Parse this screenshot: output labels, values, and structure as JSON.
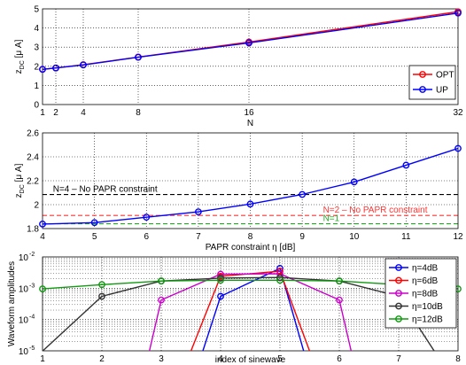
{
  "chart_data": [
    {
      "type": "line",
      "xlabel": "N",
      "ylabel_main": "z",
      "ylabel_sub": "DC",
      "ylabel_unit": " [μ A]",
      "xlim": [
        1,
        32
      ],
      "ylim": [
        0,
        5
      ],
      "xticks": [
        1,
        2,
        4,
        8,
        16,
        32
      ],
      "yticks": [
        0,
        1,
        2,
        3,
        4,
        5
      ],
      "grid": true,
      "legend_position": "bottom-right",
      "x": [
        1,
        2,
        4,
        8,
        16,
        32
      ],
      "series": [
        {
          "name": "OPT",
          "color": "#ff0000",
          "values": [
            1.84,
            1.91,
            2.08,
            2.48,
            3.27,
            4.85
          ]
        },
        {
          "name": "UP",
          "color": "#0000ff",
          "values": [
            1.84,
            1.91,
            2.07,
            2.47,
            3.22,
            4.78
          ]
        }
      ]
    },
    {
      "type": "line",
      "xlabel": "PAPR constraint η [dB]",
      "ylabel_main": "z",
      "ylabel_sub": "DC",
      "ylabel_unit": " [μ A]",
      "xlim": [
        4,
        12
      ],
      "ylim": [
        1.8,
        2.6
      ],
      "xticks": [
        4,
        5,
        6,
        7,
        8,
        9,
        10,
        11,
        12
      ],
      "yticks": [
        1.8,
        2.0,
        2.2,
        2.4,
        2.6
      ],
      "yticklabels": [
        "1.8",
        "2",
        "2.2",
        "2.4",
        "2.6"
      ],
      "grid": true,
      "x": [
        4,
        5,
        6,
        7,
        8,
        9,
        10,
        11,
        12
      ],
      "series": [
        {
          "name": "",
          "color": "#0000ff",
          "values": [
            1.838,
            1.85,
            1.895,
            1.94,
            2.005,
            2.085,
            2.19,
            2.33,
            2.47
          ]
        }
      ],
      "reference_lines": [
        {
          "y": 2.085,
          "color": "#000000",
          "label": "N=4 – No PAPR constraint",
          "label_x": 4.2
        },
        {
          "y": 1.91,
          "color": "#ff3333",
          "label": "N=2 – No PAPR constraint",
          "label_x": 9.4
        },
        {
          "y": 1.84,
          "color": "#22aa22",
          "label": "N=1",
          "label_x": 9.4
        }
      ]
    },
    {
      "type": "line",
      "log_y": true,
      "xlabel": "index of sinewave",
      "ylabel": "Waveform amplitudes",
      "xlim": [
        1,
        8
      ],
      "ylim_exp": [
        -5,
        -2
      ],
      "xticks": [
        1,
        2,
        3,
        4,
        5,
        6,
        7,
        8
      ],
      "yticks_exp": [
        -5,
        -4,
        -3,
        -2
      ],
      "ytick_base": "10",
      "grid": true,
      "legend_position": "top-right",
      "series": [
        {
          "name": "η=4dB",
          "color": "#0000ff",
          "x": [
            3.7,
            4,
            5,
            5.4
          ],
          "values": [
            9.8e-06,
            0.00055,
            0.0043,
            9.8e-06
          ]
        },
        {
          "name": "η=6dB",
          "color": "#ff0000",
          "x": [
            3.5,
            4,
            5,
            5.5
          ],
          "values": [
            9.8e-06,
            0.0024,
            0.0035,
            9.8e-06
          ]
        },
        {
          "name": "η=8dB",
          "color": "#cc00cc",
          "x": [
            2.8,
            3,
            4,
            5,
            6,
            6.2
          ],
          "values": [
            9.8e-06,
            0.00042,
            0.0028,
            0.0029,
            0.00042,
            9.8e-06
          ]
        },
        {
          "name": "η=10dB",
          "color": "#333333",
          "x": [
            1,
            2,
            3,
            4,
            5,
            6,
            7,
            7.6
          ],
          "values": [
            9.8e-06,
            0.00055,
            0.0017,
            0.0021,
            0.0022,
            0.0017,
            0.00055,
            9.8e-06
          ]
        },
        {
          "name": "η=12dB",
          "color": "#119911",
          "x": [
            1,
            2,
            3,
            4,
            5,
            6,
            7,
            8
          ],
          "values": [
            0.00095,
            0.0013,
            0.0017,
            0.0018,
            0.0018,
            0.0017,
            0.0013,
            0.00095
          ]
        }
      ]
    }
  ]
}
